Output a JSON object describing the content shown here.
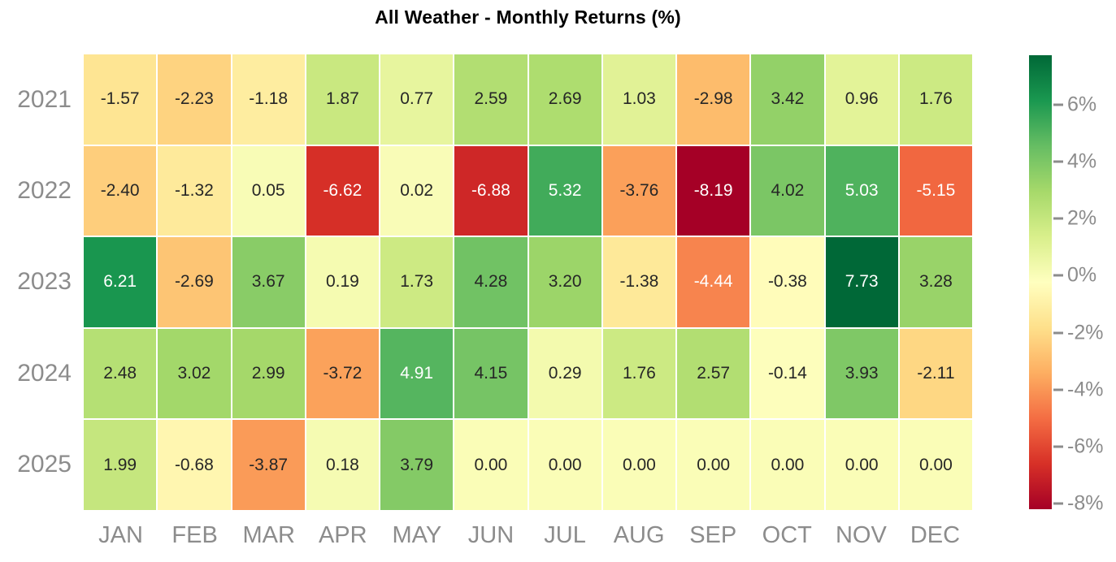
{
  "chart_data": {
    "type": "heatmap",
    "title": "All Weather - Monthly Returns (%)",
    "rows": [
      "2021",
      "2022",
      "2023",
      "2024",
      "2025"
    ],
    "columns": [
      "JAN",
      "FEB",
      "MAR",
      "APR",
      "MAY",
      "JUN",
      "JUL",
      "AUG",
      "SEP",
      "OCT",
      "NOV",
      "DEC"
    ],
    "values": [
      [
        -1.57,
        -2.23,
        -1.18,
        1.87,
        0.77,
        2.59,
        2.69,
        1.03,
        -2.98,
        3.42,
        0.96,
        1.76
      ],
      [
        -2.4,
        -1.32,
        0.05,
        -6.62,
        0.02,
        -6.88,
        5.32,
        -3.76,
        -8.19,
        4.02,
        5.03,
        -5.15
      ],
      [
        6.21,
        -2.69,
        3.67,
        0.19,
        1.73,
        4.28,
        3.2,
        -1.38,
        -4.44,
        -0.38,
        7.73,
        3.28
      ],
      [
        2.48,
        3.02,
        2.99,
        -3.72,
        4.91,
        4.15,
        0.29,
        1.76,
        2.57,
        -0.14,
        3.93,
        -2.11
      ],
      [
        1.99,
        -0.68,
        -3.87,
        0.18,
        3.79,
        0.0,
        0.0,
        0.0,
        0.0,
        0.0,
        0.0,
        0.0
      ]
    ],
    "value_decimals": 2,
    "vmin": -8.19,
    "vmax": 7.73,
    "colormap": "RdYlGn",
    "colormap_stops": [
      "#a50026",
      "#d73027",
      "#f46d43",
      "#fdae61",
      "#fee08b",
      "#ffffbf",
      "#d9ef8b",
      "#a6d96a",
      "#66bd63",
      "#1a9850",
      "#006837"
    ],
    "colorbar": {
      "position": "right",
      "ticks": [
        {
          "value": 6,
          "label": "6%"
        },
        {
          "value": 4,
          "label": "4%"
        },
        {
          "value": 2,
          "label": "2%"
        },
        {
          "value": 0,
          "label": "0%"
        },
        {
          "value": -2,
          "label": "-2%"
        },
        {
          "value": -4,
          "label": "-4%"
        },
        {
          "value": -6,
          "label": "-6%"
        },
        {
          "value": -8,
          "label": "-8%"
        }
      ]
    },
    "colors": {
      "annotation_dark": "#262626",
      "annotation_light": "#ffffff",
      "axis_label": "#8c8c8c",
      "title": "#000000",
      "background": "#ffffff",
      "cell_gap": "#ffffff"
    },
    "grid_lines": false,
    "annotation_luminance_threshold": 0.408
  }
}
